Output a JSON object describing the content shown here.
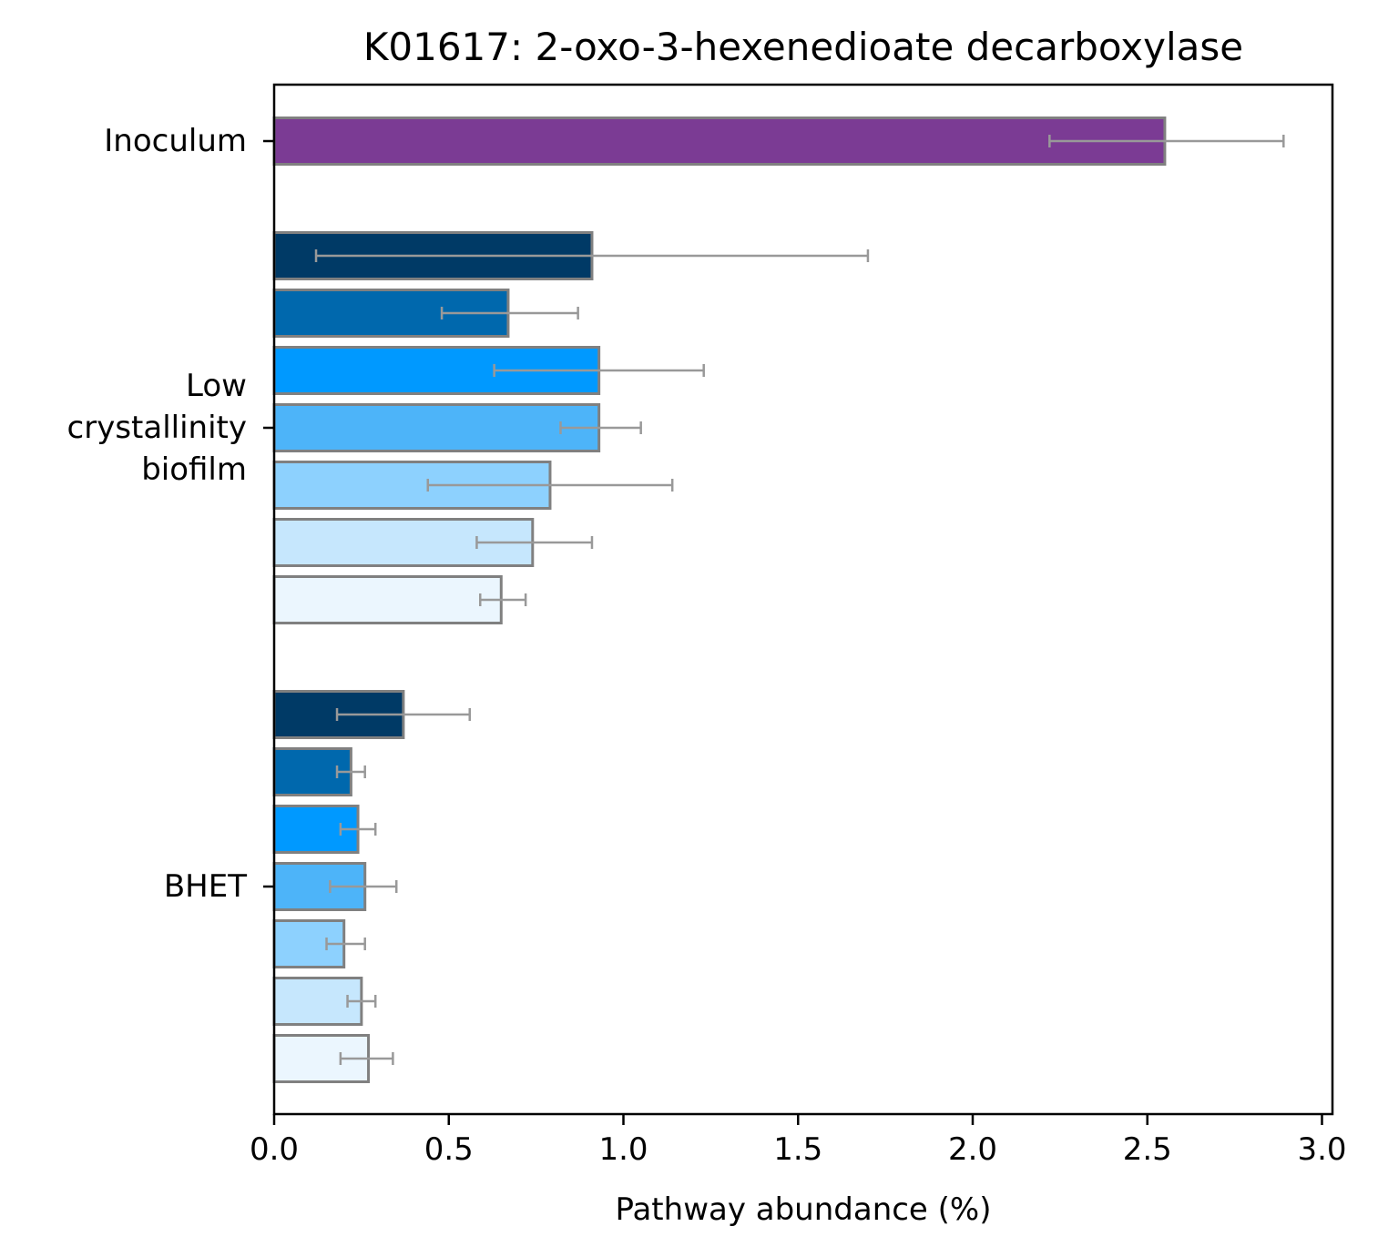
{
  "chart_data": {
    "type": "bar",
    "orientation": "horizontal",
    "title": "K01617: 2-oxo-3-hexenedioate decarboxylase",
    "xlabel": "Pathway abundance (%)",
    "ylabel": "",
    "xlim": [
      0.0,
      3.03
    ],
    "x_ticks": [
      "0.0",
      "0.5",
      "1.0",
      "1.5",
      "2.0",
      "2.5",
      "3.0"
    ],
    "grid": false,
    "groups": [
      {
        "label_lines": [
          "Inoculum"
        ],
        "bars": [
          {
            "value": 2.55,
            "error_low": 2.22,
            "error_high": 2.89,
            "color": "#7b3b94"
          }
        ]
      },
      {
        "label_lines": [
          "Low",
          "crystallinity",
          "biofilm"
        ],
        "bars": [
          {
            "value": 0.91,
            "error_low": 0.12,
            "error_high": 1.7,
            "color": "#003a66"
          },
          {
            "value": 0.67,
            "error_low": 0.48,
            "error_high": 0.87,
            "color": "#0068ad"
          },
          {
            "value": 0.93,
            "error_low": 0.63,
            "error_high": 1.23,
            "color": "#0099ff"
          },
          {
            "value": 0.93,
            "error_low": 0.82,
            "error_high": 1.05,
            "color": "#4db4f9"
          },
          {
            "value": 0.79,
            "error_low": 0.44,
            "error_high": 1.14,
            "color": "#8dd1fe"
          },
          {
            "value": 0.74,
            "error_low": 0.58,
            "error_high": 0.91,
            "color": "#c6e7fd"
          },
          {
            "value": 0.65,
            "error_low": 0.59,
            "error_high": 0.72,
            "color": "#ebf6fe"
          }
        ]
      },
      {
        "label_lines": [
          "BHET"
        ],
        "bars": [
          {
            "value": 0.37,
            "error_low": 0.18,
            "error_high": 0.56,
            "color": "#003a66"
          },
          {
            "value": 0.22,
            "error_low": 0.18,
            "error_high": 0.26,
            "color": "#0068ad"
          },
          {
            "value": 0.24,
            "error_low": 0.19,
            "error_high": 0.29,
            "color": "#0099ff"
          },
          {
            "value": 0.26,
            "error_low": 0.16,
            "error_high": 0.35,
            "color": "#4db4f9"
          },
          {
            "value": 0.2,
            "error_low": 0.15,
            "error_high": 0.26,
            "color": "#8dd1fe"
          },
          {
            "value": 0.25,
            "error_low": 0.21,
            "error_high": 0.29,
            "color": "#c6e7fd"
          },
          {
            "value": 0.27,
            "error_low": 0.19,
            "error_high": 0.34,
            "color": "#ebf6fe"
          }
        ]
      }
    ],
    "bar_edge_color": "#808080",
    "error_bar_color": "#999999"
  }
}
